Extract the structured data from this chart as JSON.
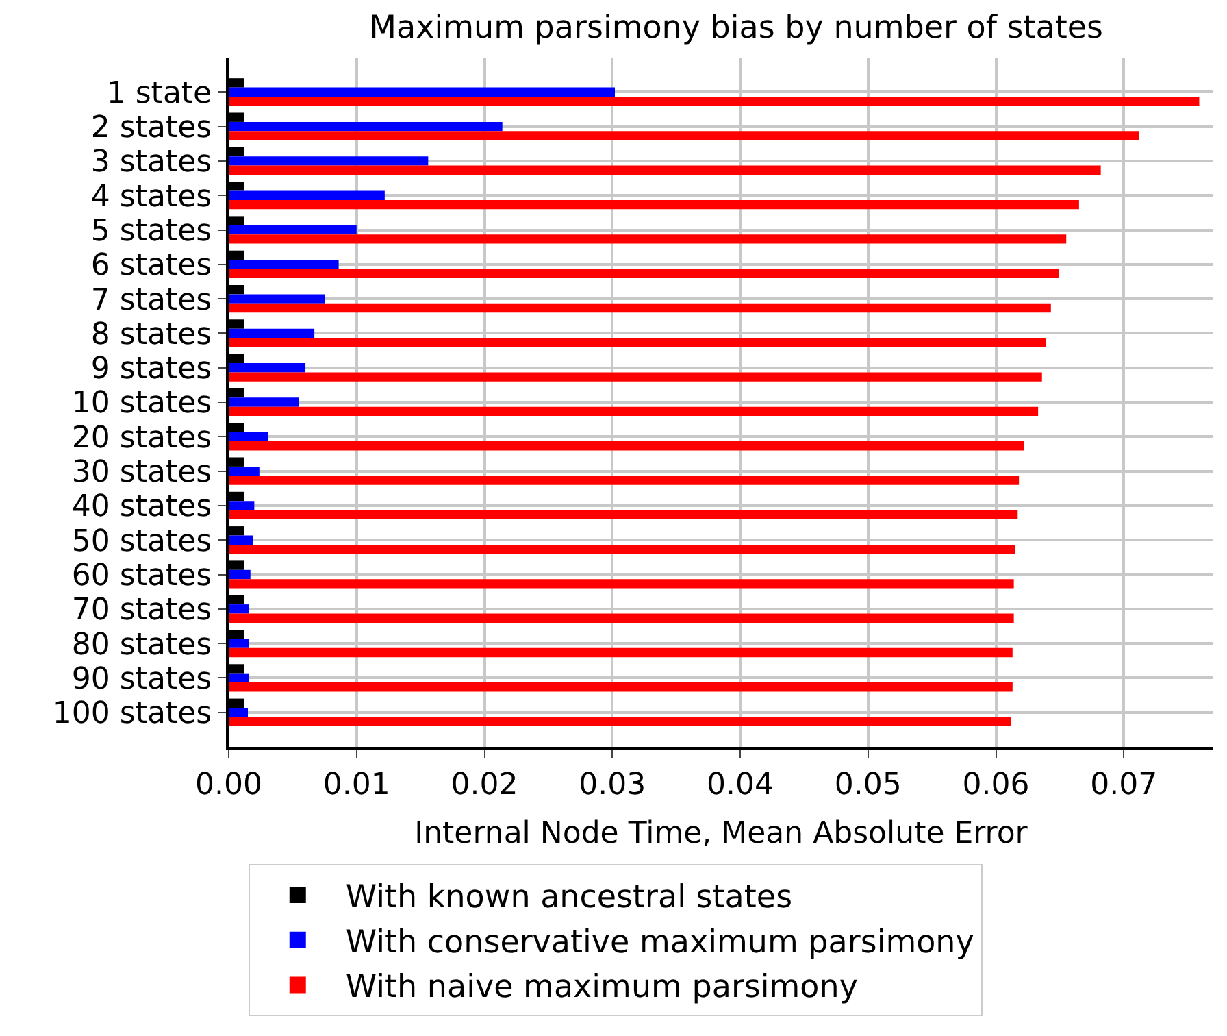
{
  "chart_data": {
    "type": "bar",
    "orientation": "horizontal",
    "title": "Maximum parsimony bias by number of states",
    "xlabel": "Internal Node Time, Mean Absolute Error",
    "categories": [
      "1 state",
      "2 states",
      "3 states",
      "4 states",
      "5 states",
      "6 states",
      "7 states",
      "8 states",
      "9 states",
      "10 states",
      "20 states",
      "30 states",
      "40 states",
      "50 states",
      "60 states",
      "70 states",
      "80 states",
      "90 states",
      "100 states"
    ],
    "series": [
      {
        "name": "With known ancestral states",
        "color": "#000000",
        "values": [
          0.0012,
          0.0012,
          0.0012,
          0.0012,
          0.0012,
          0.0012,
          0.0012,
          0.0012,
          0.0012,
          0.0012,
          0.0012,
          0.0012,
          0.0012,
          0.0012,
          0.0012,
          0.0012,
          0.0012,
          0.0012,
          0.0012
        ]
      },
      {
        "name": "With conservative maximum parsimony",
        "color": "#0000ff",
        "values": [
          0.0302,
          0.0214,
          0.0156,
          0.0122,
          0.01,
          0.0086,
          0.0075,
          0.0067,
          0.006,
          0.0055,
          0.0031,
          0.0024,
          0.002,
          0.0019,
          0.0017,
          0.0016,
          0.0016,
          0.0016,
          0.0015
        ]
      },
      {
        "name": "With naive maximum parsimony",
        "color": "#ff0000",
        "values": [
          0.0759,
          0.0712,
          0.0682,
          0.0665,
          0.0655,
          0.0649,
          0.0643,
          0.0639,
          0.0636,
          0.0633,
          0.0622,
          0.0618,
          0.0617,
          0.0615,
          0.0614,
          0.0614,
          0.0613,
          0.0613,
          0.0612
        ]
      }
    ],
    "xlim": [
      0,
      0.077
    ],
    "xticks": [
      {
        "value": 0,
        "label": "0.00"
      },
      {
        "value": 0.01,
        "label": "0.01"
      },
      {
        "value": 0.02,
        "label": "0.02"
      },
      {
        "value": 0.03,
        "label": "0.03"
      },
      {
        "value": 0.04,
        "label": "0.04"
      },
      {
        "value": 0.05,
        "label": "0.05"
      },
      {
        "value": 0.06,
        "label": "0.06"
      },
      {
        "value": 0.07,
        "label": "0.07"
      }
    ],
    "grid": true,
    "legend": "bottom"
  }
}
